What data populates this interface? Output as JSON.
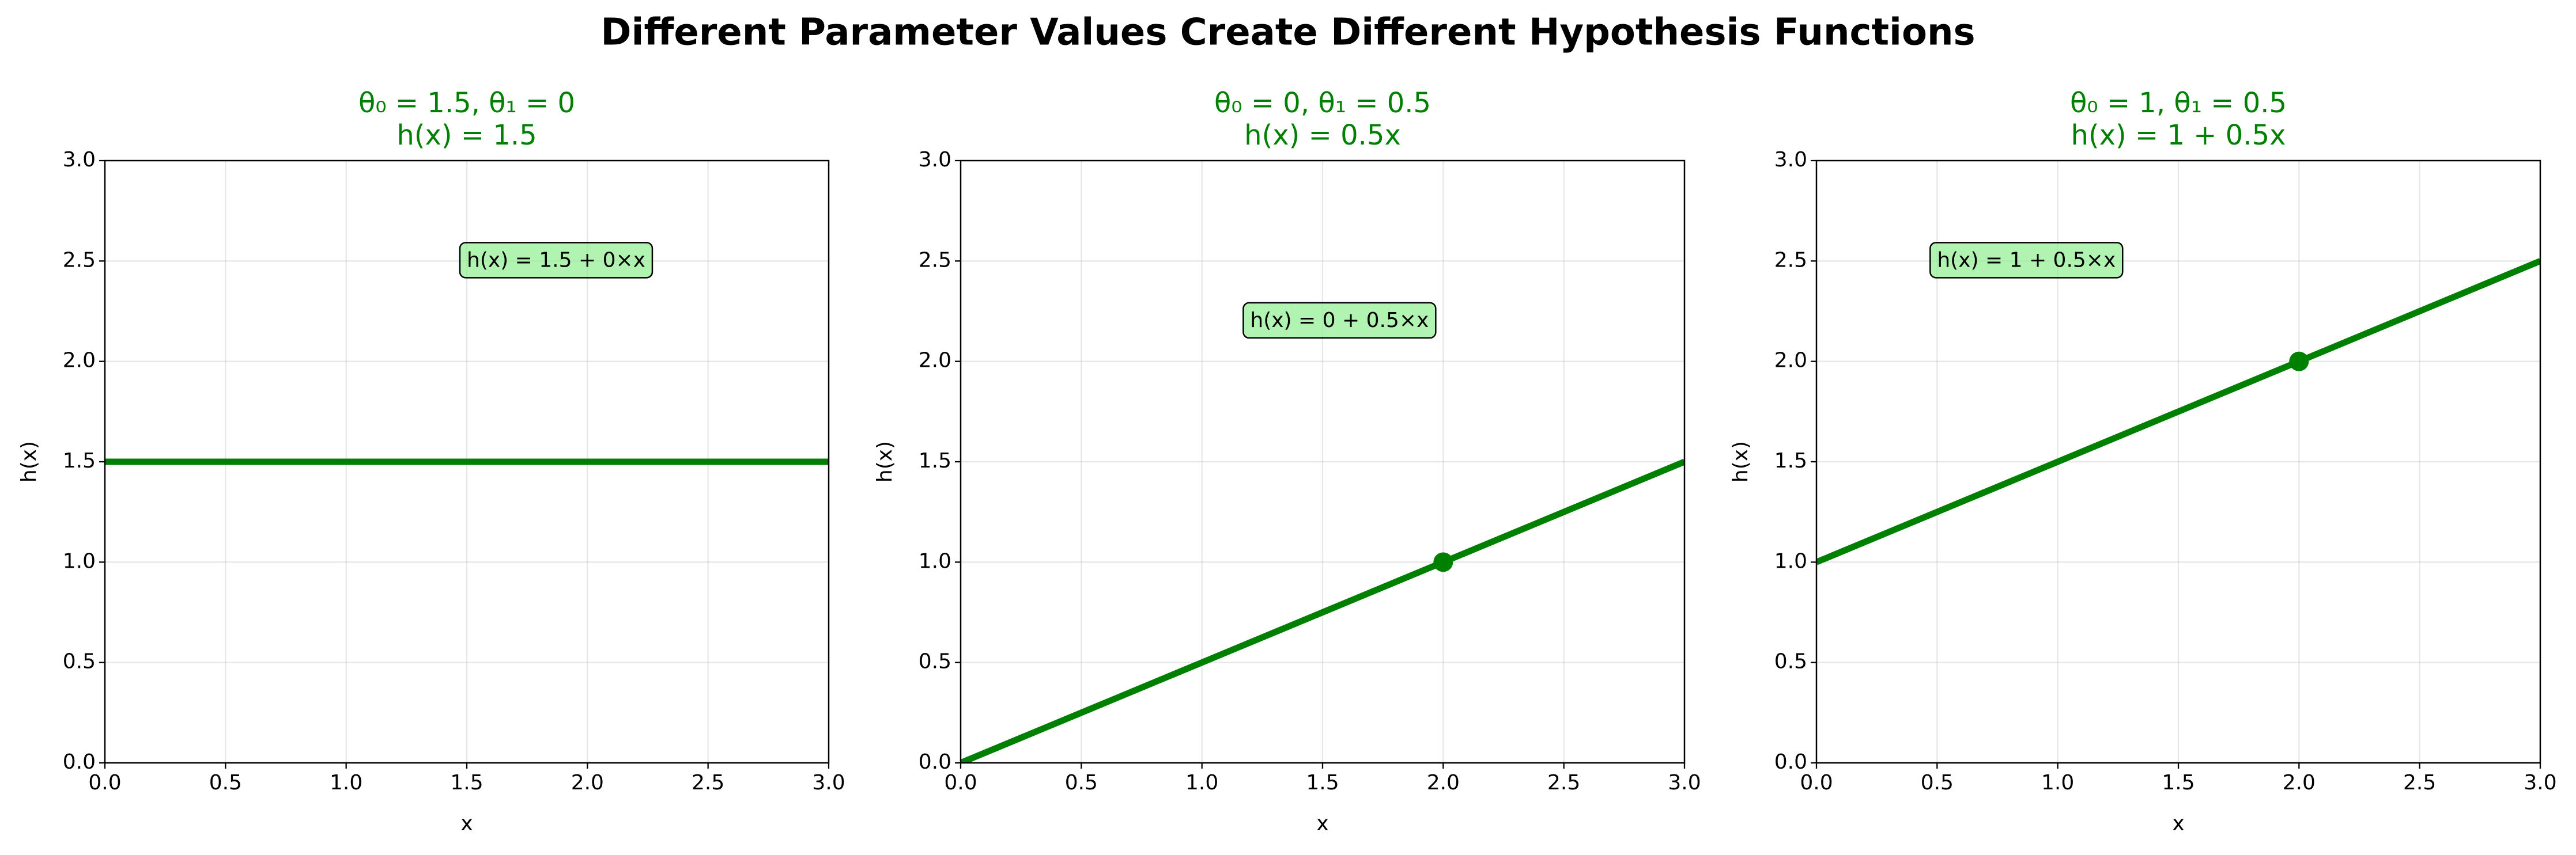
{
  "title": "Different Parameter Values Create Different Hypothesis Functions",
  "chart_data": [
    {
      "type": "line",
      "title": "θ₀ = 1.5, θ₁ = 0",
      "subtitle": "h(x) = 1.5",
      "annotation": "h(x) = 1.5 + 0×x",
      "x_label": "x",
      "y_label": "h(x)",
      "grid": true,
      "x": [
        0,
        3
      ],
      "series": [
        {
          "color": "#008000",
          "values": [
            1.5,
            1.5
          ]
        }
      ],
      "points": {
        "color": "#008000",
        "x": [],
        "values": []
      },
      "xlim": [
        0,
        3
      ],
      "ylim": [
        0,
        3
      ],
      "xticks": [
        {
          "value": 0,
          "label": "0.0"
        },
        0.5,
        {
          "value": 1,
          "label": "1.0"
        },
        1.5,
        {
          "value": 2,
          "label": "2.0"
        },
        2.5,
        {
          "value": 3,
          "label": "3.0"
        }
      ],
      "yticks": [
        {
          "value": 0,
          "label": "0.0"
        },
        0.5,
        {
          "value": 1,
          "label": "1.0"
        },
        1.5,
        {
          "value": 2,
          "label": "2.0"
        },
        2.5,
        {
          "value": 3,
          "label": "3.0"
        }
      ]
    },
    {
      "type": "line",
      "title": "θ₀ = 0, θ₁ = 0.5",
      "subtitle": "h(x) = 0.5x",
      "annotation": "h(x) = 0 + 0.5×x",
      "x_label": "x",
      "y_label": "h(x)",
      "grid": true,
      "x": [
        0,
        3
      ],
      "series": [
        {
          "color": "#008000",
          "values": [
            0,
            1.5
          ]
        }
      ],
      "points": {
        "color": "#008000",
        "x": [
          2
        ],
        "values": [
          1
        ]
      },
      "xlim": [
        0,
        3
      ],
      "ylim": [
        0,
        3
      ],
      "xticks": [
        {
          "value": 0,
          "label": "0.0"
        },
        0.5,
        {
          "value": 1,
          "label": "1.0"
        },
        1.5,
        {
          "value": 2,
          "label": "2.0"
        },
        2.5,
        {
          "value": 3,
          "label": "3.0"
        }
      ],
      "yticks": [
        {
          "value": 0,
          "label": "0.0"
        },
        0.5,
        {
          "value": 1,
          "label": "1.0"
        },
        1.5,
        {
          "value": 2,
          "label": "2.0"
        },
        2.5,
        {
          "value": 3,
          "label": "3.0"
        }
      ]
    },
    {
      "type": "line",
      "title": "θ₀ = 1, θ₁ = 0.5",
      "subtitle": "h(x) = 1 + 0.5x",
      "annotation": "h(x) = 1 + 0.5×x",
      "x_label": "x",
      "y_label": "h(x)",
      "grid": true,
      "x": [
        0,
        3
      ],
      "series": [
        {
          "color": "#008000",
          "values": [
            1,
            2.5
          ]
        }
      ],
      "points": {
        "color": "#008000",
        "x": [
          2
        ],
        "values": [
          2
        ]
      },
      "xlim": [
        0,
        3
      ],
      "ylim": [
        0,
        3
      ],
      "xticks": [
        {
          "value": 0,
          "label": "0.0"
        },
        0.5,
        {
          "value": 1,
          "label": "1.0"
        },
        1.5,
        {
          "value": 2,
          "label": "2.0"
        },
        2.5,
        {
          "value": 3,
          "label": "3.0"
        }
      ],
      "yticks": [
        {
          "value": 0,
          "label": "0.0"
        },
        0.5,
        {
          "value": 1,
          "label": "1.0"
        },
        1.5,
        {
          "value": 2,
          "label": "2.0"
        },
        2.5,
        {
          "value": 3,
          "label": "3.0"
        }
      ]
    }
  ]
}
